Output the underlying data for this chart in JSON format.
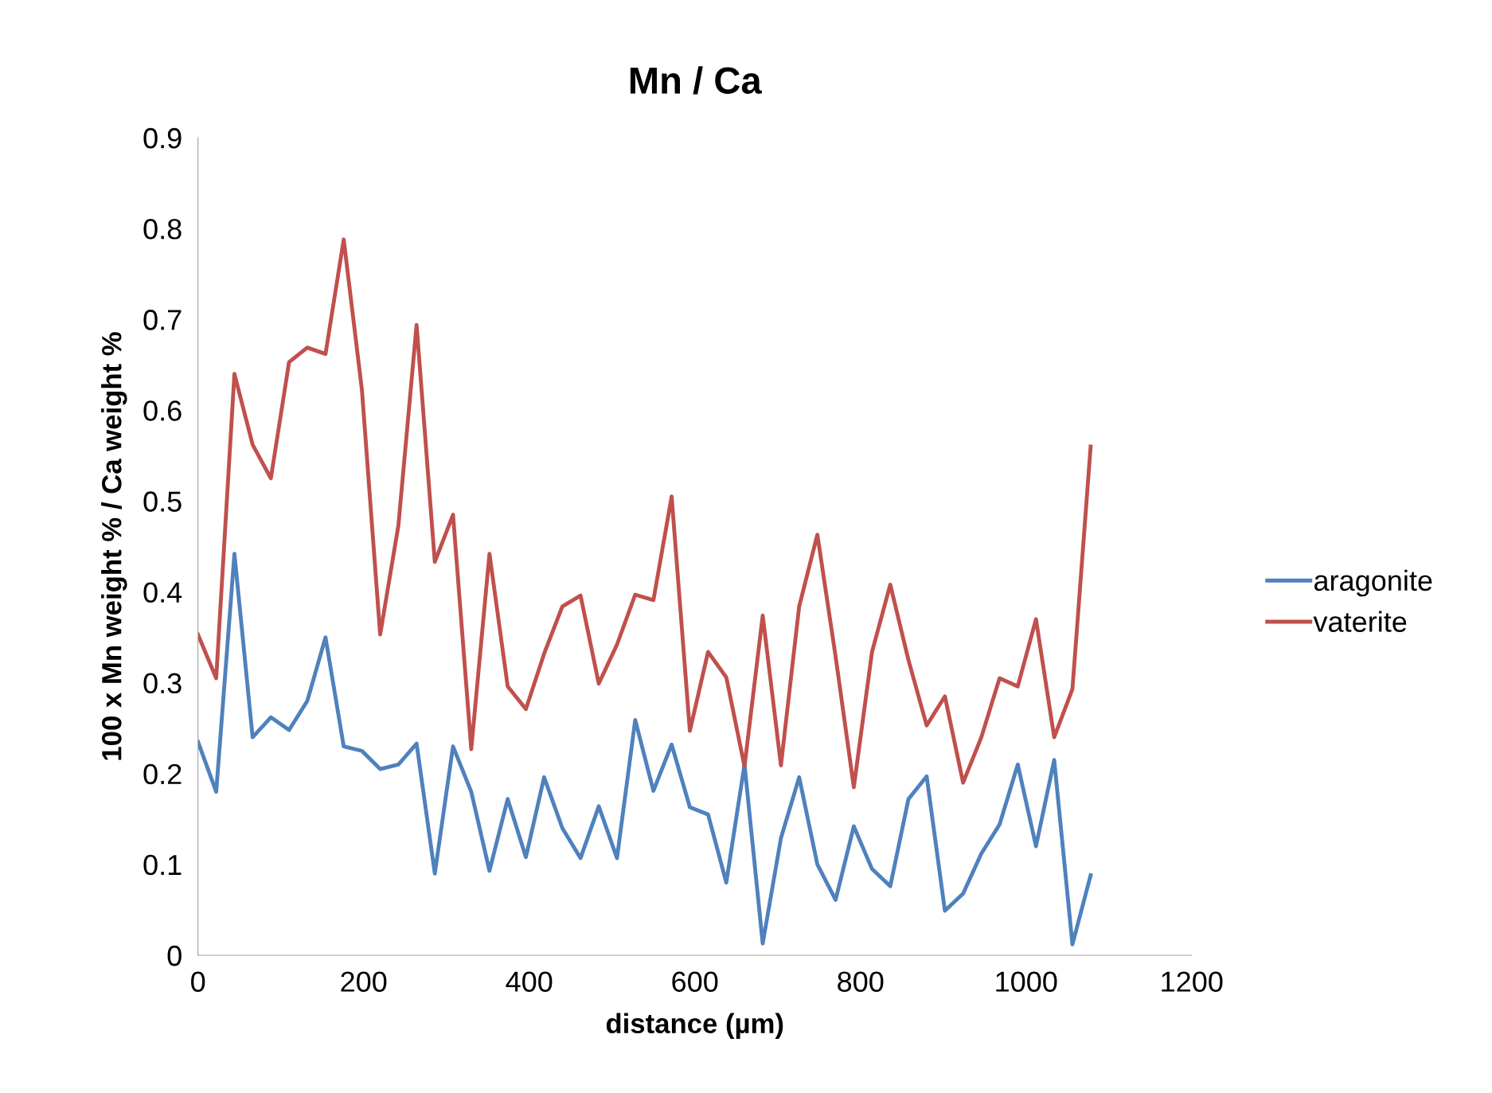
{
  "chart_data": {
    "type": "line",
    "title": "Mn / Ca",
    "xlabel": "distance (µm)",
    "ylabel": "100 x Mn weight % / Ca weight %",
    "x": [
      0,
      22,
      44,
      66,
      88,
      110,
      132,
      154,
      176,
      198,
      220,
      242,
      264,
      286,
      308,
      330,
      352,
      374,
      396,
      418,
      440,
      462,
      484,
      506,
      528,
      550,
      572,
      594,
      616,
      638,
      660,
      682,
      704,
      726,
      748,
      770,
      792,
      814,
      836,
      858,
      880,
      902,
      924,
      946,
      968,
      990,
      1012,
      1034,
      1056,
      1078
    ],
    "series": [
      {
        "name": "aragonite",
        "color": "#4f81bd",
        "values": [
          0.235,
          0.18,
          0.442,
          0.24,
          0.262,
          0.248,
          0.28,
          0.35,
          0.23,
          0.225,
          0.205,
          0.21,
          0.233,
          0.09,
          0.23,
          0.18,
          0.093,
          0.172,
          0.108,
          0.196,
          0.14,
          0.107,
          0.164,
          0.107,
          0.259,
          0.181,
          0.232,
          0.163,
          0.155,
          0.08,
          0.21,
          0.013,
          0.129,
          0.196,
          0.1,
          0.061,
          0.142,
          0.095,
          0.076,
          0.172,
          0.197,
          0.049,
          0.068,
          0.112,
          0.144,
          0.21,
          0.12,
          0.215,
          0.012,
          0.088
        ]
      },
      {
        "name": "vaterite",
        "color": "#c0504d",
        "values": [
          0.353,
          0.305,
          0.64,
          0.562,
          0.525,
          0.653,
          0.669,
          0.662,
          0.788,
          0.622,
          0.353,
          0.473,
          0.694,
          0.433,
          0.485,
          0.227,
          0.442,
          0.296,
          0.271,
          0.332,
          0.384,
          0.396,
          0.299,
          0.342,
          0.397,
          0.391,
          0.505,
          0.247,
          0.334,
          0.306,
          0.208,
          0.374,
          0.209,
          0.384,
          0.463,
          0.329,
          0.185,
          0.334,
          0.408,
          0.325,
          0.253,
          0.285,
          0.19,
          0.24,
          0.305,
          0.296,
          0.37,
          0.24,
          0.293,
          0.56
        ]
      }
    ],
    "xlim": [
      0,
      1200
    ],
    "xticks": [
      0,
      200,
      400,
      600,
      800,
      1000,
      1200
    ],
    "ylim": [
      0,
      0.9
    ],
    "yticks": [
      0,
      0.1,
      0.2,
      0.3,
      0.4,
      0.5,
      0.6,
      0.7,
      0.8,
      0.9
    ],
    "grid": false,
    "legend": "right",
    "marker": "none",
    "line_style": "solid"
  }
}
